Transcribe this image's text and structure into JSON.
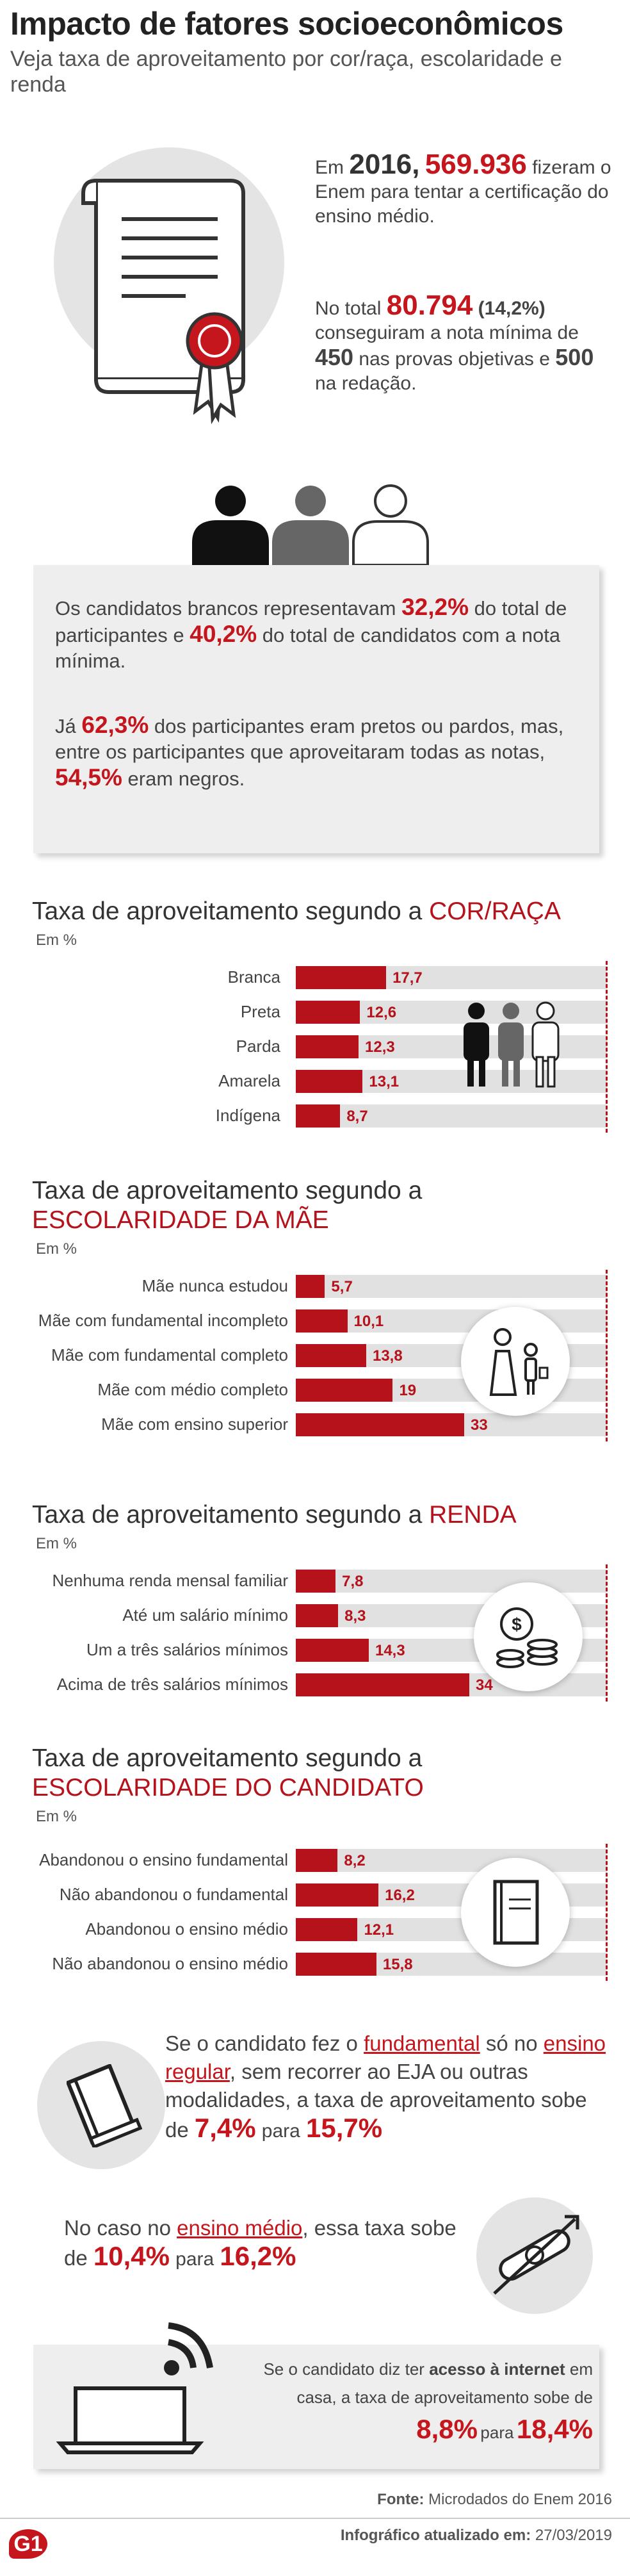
{
  "header": {
    "title": "Impacto de fatores socioeconômicos",
    "subtitle": "Veja taxa de aproveitamento por cor/raça, escolaridade e renda"
  },
  "intro": {
    "p1_a": "Em",
    "year": "2016",
    "sep": ",",
    "participants": "569.936",
    "p1_b": "fizeram o Enem para tentar a certificação do ensino médio.",
    "p2_a": "No total",
    "total": "80.794",
    "total_pct": "(14,2%)",
    "p2_b": "conseguiram a nota mínima de",
    "objective_score": "450",
    "p2_c": "nas provas objetivas e",
    "essay_score": "500",
    "p2_d": "na redação."
  },
  "race_box": {
    "l1_a": "Os candidatos brancos representavam",
    "l1_pct1": "32,2%",
    "l1_b": "do total de participantes e",
    "l1_pct2": "40,2%",
    "l1_c": "do total de candidatos com a nota mínima.",
    "l2_a": "Já",
    "l2_pct1": "62,3%",
    "l2_b": "dos participantes eram pretos ou pardos, mas, entre os participantes que aproveitaram todas as notas,",
    "l2_pct2": "54,5%",
    "l2_c": "eram negros."
  },
  "charts": [
    {
      "title_prefix": "Taxa de aproveitamento segundo a",
      "title_highlight": "COR/RAÇA",
      "unit": "Em %",
      "icon": "people-icon",
      "rows": [
        {
          "label": "Branca",
          "value": 17.7,
          "display": "17,7"
        },
        {
          "label": "Preta",
          "value": 12.6,
          "display": "12,6"
        },
        {
          "label": "Parda",
          "value": 12.3,
          "display": "12,3"
        },
        {
          "label": "Amarela",
          "value": 13.1,
          "display": "13,1"
        },
        {
          "label": "Indígena",
          "value": 8.7,
          "display": "8,7"
        }
      ]
    },
    {
      "title_prefix": "Taxa de aproveitamento segundo a",
      "title_highlight": "ESCOLARIDADE DA MÃE",
      "unit": "Em %",
      "icon": "mother-child-icon",
      "rows": [
        {
          "label": "Mãe nunca estudou",
          "value": 5.7,
          "display": "5,7"
        },
        {
          "label": "Mãe com fundamental incompleto",
          "value": 10.1,
          "display": "10,1"
        },
        {
          "label": "Mãe com fundamental completo",
          "value": 13.8,
          "display": "13,8"
        },
        {
          "label": "Mãe com médio completo",
          "value": 19,
          "display": "19"
        },
        {
          "label": "Mãe com ensino superior",
          "value": 33,
          "display": "33"
        }
      ]
    },
    {
      "title_prefix": "Taxa de aproveitamento segundo a",
      "title_highlight": "RENDA",
      "unit": "Em %",
      "icon": "coins-icon",
      "rows": [
        {
          "label": "Nenhuma renda mensal familiar",
          "value": 7.8,
          "display": "7,8"
        },
        {
          "label": "Até um salário mínimo",
          "value": 8.3,
          "display": "8,3"
        },
        {
          "label": "Um a três salários mínimos",
          "value": 14.3,
          "display": "14,3"
        },
        {
          "label": "Acima de três salários mínimos",
          "value": 34,
          "display": "34"
        }
      ]
    },
    {
      "title_prefix": "Taxa de aproveitamento segundo a",
      "title_highlight": "ESCOLARIDADE DO CANDIDATO",
      "unit": "Em %",
      "icon": "notebook-icon",
      "rows": [
        {
          "label": "Abandonou o ensino fundamental",
          "value": 8.2,
          "display": "8,2"
        },
        {
          "label": "Não abandonou o fundamental",
          "value": 16.2,
          "display": "16,2"
        },
        {
          "label": "Abandonou o ensino médio",
          "value": 12.1,
          "display": "12,1"
        },
        {
          "label": "Não abandonou o ensino médio",
          "value": 15.8,
          "display": "15,8"
        }
      ]
    }
  ],
  "chart_data": [
    {
      "type": "bar",
      "orientation": "horizontal",
      "title": "Taxa de aproveitamento segundo a COR/RAÇA",
      "unit": "Em %",
      "categories": [
        "Branca",
        "Preta",
        "Parda",
        "Amarela",
        "Indígena"
      ],
      "values": [
        17.7,
        12.6,
        12.3,
        13.1,
        8.7
      ],
      "xlim": [
        0,
        100
      ]
    },
    {
      "type": "bar",
      "orientation": "horizontal",
      "title": "Taxa de aproveitamento segundo a ESCOLARIDADE DA MÃE",
      "unit": "Em %",
      "categories": [
        "Mãe nunca estudou",
        "Mãe com fundamental incompleto",
        "Mãe com fundamental completo",
        "Mãe com médio completo",
        "Mãe com ensino superior"
      ],
      "values": [
        5.7,
        10.1,
        13.8,
        19,
        33
      ],
      "xlim": [
        0,
        100
      ]
    },
    {
      "type": "bar",
      "orientation": "horizontal",
      "title": "Taxa de aproveitamento segundo a RENDA",
      "unit": "Em %",
      "categories": [
        "Nenhuma renda mensal familiar",
        "Até um salário mínimo",
        "Um a três salários mínimos",
        "Acima de três salários mínimos"
      ],
      "values": [
        7.8,
        8.3,
        14.3,
        34
      ],
      "xlim": [
        0,
        100
      ]
    },
    {
      "type": "bar",
      "orientation": "horizontal",
      "title": "Taxa de aproveitamento segundo a ESCOLARIDADE DO CANDIDATO",
      "unit": "Em %",
      "categories": [
        "Abandonou o ensino fundamental",
        "Não abandonou o fundamental",
        "Abandonou o ensino médio",
        "Não abandonou o ensino médio"
      ],
      "values": [
        8.2,
        16.2,
        12.1,
        15.8
      ],
      "xlim": [
        0,
        100
      ]
    }
  ],
  "fundamental": {
    "a": "Se o candidato fez o",
    "hl": "fundamental",
    "b": "só no",
    "hl2": "ensino regular",
    "c": ", sem recorrer ao EJA ou outras modalidades, a taxa de aproveitamento sobe de",
    "from": "7,4%",
    "para": "para",
    "to": "15,7%"
  },
  "medio": {
    "a": "No caso no",
    "hl": "ensino médio",
    "b": ", essa taxa sobe de",
    "from": "10,4%",
    "para": "para",
    "to": "16,2%"
  },
  "internet": {
    "a": "Se o candidato diz ter",
    "hl": "acesso à internet",
    "b": "em casa, a taxa de aproveitamento sobe de",
    "from": "8,8%",
    "para": "para",
    "to": "18,4%"
  },
  "footer": {
    "source_label": "Fonte:",
    "source": "Microdados do Enem 2016",
    "updated_label": "Infográfico atualizado em:",
    "updated": "27/03/2019",
    "logo": "G1"
  },
  "colors": {
    "accent": "#b5121b",
    "track": "#e1e1e1",
    "box": "#eeeeee"
  }
}
